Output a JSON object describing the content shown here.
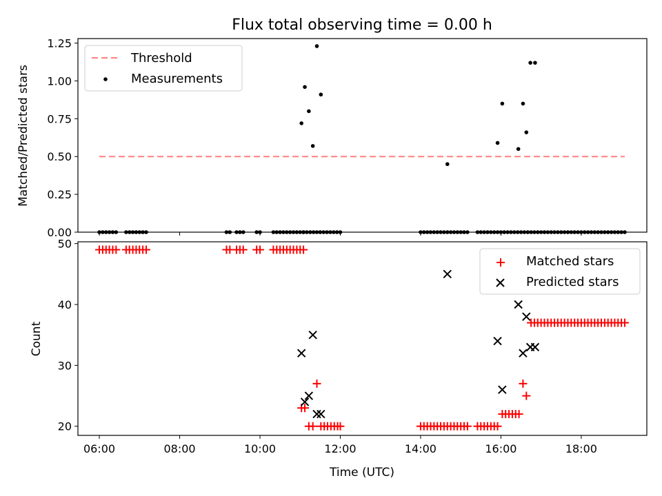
{
  "chart_data": [
    {
      "type": "scatter",
      "title": "Flux total observing time = 0.00 h",
      "xlabel": "",
      "ylabel": "Matched/Predicted stars",
      "xlim": [
        "05:28",
        "19:38"
      ],
      "ylim": [
        0,
        1.28
      ],
      "yticks": [
        "0.00",
        "0.25",
        "0.50",
        "0.75",
        "1.00",
        "1.25"
      ],
      "ytick_values": [
        0,
        0.25,
        0.5,
        0.75,
        1.0,
        1.25
      ],
      "legend": {
        "position": "upper left",
        "entries": [
          {
            "label": "Threshold",
            "style": "dashed-line"
          },
          {
            "label": "Measurements",
            "style": "dot"
          }
        ]
      },
      "series": [
        {
          "name": "Threshold",
          "kind": "line",
          "color": "#ff7f7f",
          "x": [
            "06:00",
            "19:05"
          ],
          "y": [
            0.5,
            0.5
          ]
        },
        {
          "name": "Measurements",
          "kind": "scatter",
          "color": "#000000",
          "x": [
            "06:00",
            "06:05",
            "06:10",
            "06:15",
            "06:20",
            "06:25",
            "06:40",
            "06:45",
            "06:50",
            "06:55",
            "07:00",
            "07:05",
            "07:10",
            "09:10",
            "09:15",
            "09:25",
            "09:30",
            "09:35",
            "09:55",
            "10:00",
            "10:20",
            "10:25",
            "10:30",
            "10:35",
            "10:40",
            "10:45",
            "10:50",
            "10:55",
            "11:00",
            "11:05",
            "11:05",
            "11:10",
            "11:15",
            "11:20",
            "11:25",
            "11:30",
            "11:35",
            "11:40",
            "11:45",
            "11:50",
            "11:55",
            "12:00",
            "14:00",
            "14:05",
            "14:10",
            "14:15",
            "14:20",
            "14:25",
            "14:30",
            "14:35",
            "14:40",
            "14:45",
            "14:50",
            "14:55",
            "15:00",
            "15:05",
            "15:10",
            "15:25",
            "15:30",
            "15:35",
            "15:40",
            "15:45",
            "15:50",
            "15:55",
            "16:00",
            "16:05",
            "16:10",
            "16:15",
            "16:20",
            "16:25",
            "16:30",
            "16:35",
            "16:40",
            "16:45",
            "16:50",
            "16:55",
            "17:00",
            "17:05",
            "17:10",
            "17:15",
            "17:20",
            "17:25",
            "17:30",
            "17:35",
            "17:40",
            "17:45",
            "17:50",
            "17:55",
            "18:00",
            "18:05",
            "18:10",
            "18:15",
            "18:20",
            "18:25",
            "18:30",
            "18:35",
            "18:40",
            "18:45",
            "18:50",
            "18:55",
            "19:00",
            "19:05",
            "11:02",
            "11:07",
            "11:13",
            "11:19",
            "11:25",
            "11:31",
            "14:40",
            "15:55",
            "16:02",
            "16:26",
            "16:33",
            "16:38",
            "16:44",
            "16:51"
          ],
          "y": [
            0,
            0,
            0,
            0,
            0,
            0,
            0,
            0,
            0,
            0,
            0,
            0,
            0,
            0,
            0,
            0,
            0,
            0,
            0,
            0,
            0,
            0,
            0,
            0,
            0,
            0,
            0,
            0,
            0,
            0,
            0,
            0,
            0,
            0,
            0,
            0,
            0,
            0,
            0,
            0,
            0,
            0,
            0,
            0,
            0,
            0,
            0,
            0,
            0,
            0,
            0,
            0,
            0,
            0,
            0,
            0,
            0,
            0,
            0,
            0,
            0,
            0,
            0,
            0,
            0,
            0,
            0,
            0,
            0,
            0,
            0,
            0,
            0,
            0,
            0,
            0,
            0,
            0,
            0,
            0,
            0,
            0,
            0,
            0,
            0,
            0,
            0,
            0,
            0,
            0,
            0,
            0,
            0,
            0,
            0,
            0,
            0,
            0,
            0,
            0,
            0,
            0,
            0.72,
            0.96,
            0.8,
            0.57,
            1.23,
            0.91,
            0.45,
            0.59,
            0.85,
            0.55,
            0.85,
            0.66,
            1.12,
            1.12
          ]
        }
      ]
    },
    {
      "type": "scatter",
      "title": "",
      "xlabel": "Time (UTC)",
      "ylabel": "Count",
      "xlim": [
        "05:28",
        "19:38"
      ],
      "xticks": [
        "06:00",
        "08:00",
        "10:00",
        "12:00",
        "14:00",
        "16:00",
        "18:00"
      ],
      "ylim": [
        18.5,
        50.3
      ],
      "yticks": [
        "20",
        "30",
        "40",
        "50"
      ],
      "ytick_values": [
        20,
        30,
        40,
        50
      ],
      "legend": {
        "position": "upper right",
        "entries": [
          {
            "label": "Matched stars",
            "style": "plus"
          },
          {
            "label": "Predicted stars",
            "style": "cross"
          }
        ]
      },
      "series": [
        {
          "name": "Matched stars",
          "kind": "scatter",
          "marker": "plus",
          "color": "#ff0000",
          "x": [
            "06:00",
            "06:05",
            "06:10",
            "06:15",
            "06:20",
            "06:25",
            "06:40",
            "06:45",
            "06:50",
            "06:55",
            "07:00",
            "07:05",
            "07:10",
            "09:10",
            "09:15",
            "09:25",
            "09:30",
            "09:35",
            "09:55",
            "10:00",
            "10:20",
            "10:25",
            "10:30",
            "10:35",
            "10:40",
            "10:45",
            "10:50",
            "10:55",
            "11:00",
            "11:05",
            "11:02",
            "11:07",
            "11:13",
            "11:19",
            "11:25",
            "11:31",
            "11:36",
            "11:41",
            "11:46",
            "11:51",
            "11:56",
            "12:00",
            "14:00",
            "14:05",
            "14:10",
            "14:15",
            "14:20",
            "14:25",
            "14:30",
            "14:35",
            "14:40",
            "14:45",
            "14:50",
            "14:55",
            "15:00",
            "15:05",
            "15:10",
            "15:25",
            "15:30",
            "15:35",
            "15:40",
            "15:45",
            "15:50",
            "15:55",
            "16:02",
            "16:07",
            "16:12",
            "16:17",
            "16:22",
            "16:27",
            "16:33",
            "16:38",
            "16:45",
            "16:50",
            "16:55",
            "17:00",
            "17:05",
            "17:10",
            "17:15",
            "17:20",
            "17:25",
            "17:30",
            "17:35",
            "17:40",
            "17:45",
            "17:50",
            "17:55",
            "18:00",
            "18:05",
            "18:10",
            "18:15",
            "18:20",
            "18:25",
            "18:30",
            "18:35",
            "18:40",
            "18:45",
            "18:50",
            "18:55",
            "19:00",
            "19:05"
          ],
          "y": [
            49,
            49,
            49,
            49,
            49,
            49,
            49,
            49,
            49,
            49,
            49,
            49,
            49,
            49,
            49,
            49,
            49,
            49,
            49,
            49,
            49,
            49,
            49,
            49,
            49,
            49,
            49,
            49,
            49,
            49,
            23,
            23,
            20,
            20,
            27,
            20,
            20,
            20,
            20,
            20,
            20,
            20,
            20,
            20,
            20,
            20,
            20,
            20,
            20,
            20,
            20,
            20,
            20,
            20,
            20,
            20,
            20,
            20,
            20,
            20,
            20,
            20,
            20,
            20,
            22,
            22,
            22,
            22,
            22,
            22,
            27,
            25,
            37,
            37,
            37,
            37,
            37,
            37,
            37,
            37,
            37,
            37,
            37,
            37,
            37,
            37,
            37,
            37,
            37,
            37,
            37,
            37,
            37,
            37,
            37,
            37,
            37,
            37,
            37,
            37,
            37
          ]
        },
        {
          "name": "Predicted stars",
          "kind": "scatter",
          "marker": "cross",
          "color": "#000000",
          "x": [
            "11:02",
            "11:07",
            "11:13",
            "11:19",
            "11:25",
            "11:31",
            "14:40",
            "15:55",
            "16:02",
            "16:26",
            "16:33",
            "16:38",
            "16:44",
            "16:51"
          ],
          "y": [
            32,
            24,
            25,
            35,
            22,
            22,
            45,
            34,
            26,
            40,
            32,
            38,
            33,
            33
          ]
        }
      ]
    }
  ]
}
